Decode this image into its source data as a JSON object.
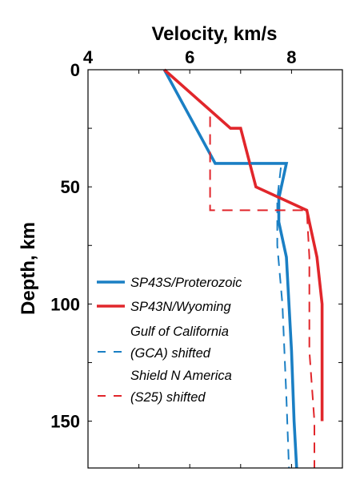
{
  "chart_data": {
    "type": "line",
    "xlabel": "Velocity, km/s",
    "ylabel": "Depth, km",
    "xlim": [
      4,
      9
    ],
    "ylim": [
      0,
      170
    ],
    "y_inverted": true,
    "x_axis_position": "top",
    "x_ticks": [
      4,
      6,
      8
    ],
    "y_ticks": [
      0,
      50,
      100,
      150
    ],
    "grid": false,
    "legend_position": "lower-left",
    "series": [
      {
        "name": "SP43S/Proterozoic",
        "color": "#1a7fc4",
        "style": "solid",
        "points": [
          [
            5.5,
            0
          ],
          [
            6.5,
            40
          ],
          [
            7.9,
            40
          ],
          [
            7.75,
            55
          ],
          [
            7.75,
            65
          ],
          [
            7.9,
            80
          ],
          [
            8.0,
            120
          ],
          [
            8.05,
            150
          ],
          [
            8.1,
            170
          ]
        ]
      },
      {
        "name": "SP43N/Wyoming",
        "color": "#e1262b",
        "style": "solid",
        "points": [
          [
            5.5,
            0
          ],
          [
            6.8,
            25
          ],
          [
            7.0,
            25
          ],
          [
            7.3,
            50
          ],
          [
            8.3,
            60
          ],
          [
            8.5,
            80
          ],
          [
            8.6,
            100
          ],
          [
            8.6,
            150
          ]
        ]
      },
      {
        "name": "Gulf of California",
        "name_line2": "(GCA) shifted",
        "color": "#1a7fc4",
        "style": "dashed",
        "points": [
          [
            6.5,
            40
          ],
          [
            7.8,
            40
          ],
          [
            7.72,
            55
          ],
          [
            7.72,
            75
          ],
          [
            7.82,
            100
          ],
          [
            7.9,
            140
          ],
          [
            7.95,
            170
          ]
        ]
      },
      {
        "name": "Shield N America",
        "name_line2": "(S25) shifted",
        "color": "#e1262b",
        "style": "dashed",
        "points": [
          [
            6.4,
            20
          ],
          [
            6.4,
            60
          ],
          [
            8.3,
            60
          ],
          [
            8.35,
            80
          ],
          [
            8.35,
            120
          ],
          [
            8.45,
            150
          ],
          [
            8.45,
            170
          ]
        ]
      }
    ]
  }
}
